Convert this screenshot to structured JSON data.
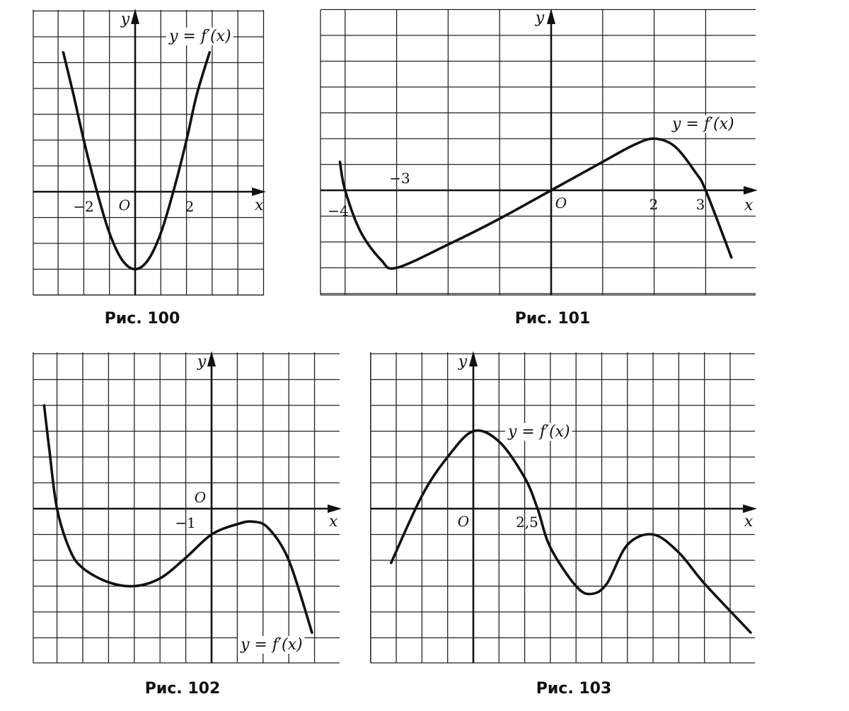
{
  "chart_data": [
    {
      "type": "line",
      "caption": "Рис. 100",
      "curve_label": "y = f′(x)",
      "xlabel": "x",
      "ylabel": "y",
      "origin_label": "O",
      "tick_labels": [
        "−2",
        "2"
      ],
      "grid": true,
      "series": [
        {
          "x": [
            -2.8,
            -2.4,
            -2.0,
            -1.5,
            -1.0,
            -0.5,
            0.0,
            0.5,
            1.0,
            1.5,
            2.0,
            2.4,
            2.9
          ],
          "y": [
            5.4,
            3.76,
            2.0,
            0.05,
            -1.6,
            -2.65,
            -3.0,
            -2.65,
            -1.6,
            0.05,
            2.0,
            3.76,
            5.4
          ]
        }
      ]
    },
    {
      "type": "line",
      "caption": "Рис. 101",
      "curve_label": "y = f′(x)",
      "xlabel": "x",
      "ylabel": "y",
      "origin_label": "O",
      "tick_labels": [
        "−4",
        "−3",
        "2",
        "3"
      ],
      "grid": true,
      "series": [
        {
          "x": [
            -4.1,
            -4.0,
            -3.7,
            -3.3,
            -3.0,
            -2.0,
            -1.0,
            0.0,
            1.0,
            1.6,
            2.0,
            2.4,
            2.8,
            3.0,
            3.5
          ],
          "y": [
            1.1,
            0.0,
            -1.6,
            -2.7,
            -3.0,
            -2.1,
            -1.1,
            0.0,
            1.1,
            1.75,
            2.0,
            1.7,
            0.7,
            0.0,
            -2.6
          ]
        }
      ]
    },
    {
      "type": "line",
      "caption": "Рис. 102",
      "curve_label": "y = f′(x)",
      "xlabel": "x",
      "ylabel": "y",
      "origin_label": "O",
      "tick_labels": [
        "−1"
      ],
      "grid": true,
      "series": [
        {
          "x": [
            -6.5,
            -6.3,
            -6.0,
            -5.5,
            -5.0,
            -4.0,
            -3.0,
            -2.0,
            -1.0,
            0.0,
            1.0,
            1.6,
            2.2,
            3.0,
            3.9
          ],
          "y": [
            4.0,
            2.3,
            0.0,
            -1.6,
            -2.3,
            -2.85,
            -3.0,
            -2.7,
            -1.9,
            -1.0,
            -0.6,
            -0.5,
            -0.75,
            -2.0,
            -4.8
          ]
        }
      ]
    },
    {
      "type": "line",
      "caption": "Рис. 103",
      "curve_label": "y = f′(x)",
      "xlabel": "x",
      "ylabel": "y",
      "origin_label": "O",
      "tick_labels": [
        "2,5"
      ],
      "grid": true,
      "series": [
        {
          "x": [
            -3.2,
            -2.0,
            -1.0,
            0.0,
            1.0,
            2.0,
            2.5,
            3.0,
            4.0,
            4.6,
            5.2,
            6.0,
            7.0,
            8.0,
            9.0,
            10.8
          ],
          "y": [
            -2.1,
            0.5,
            2.0,
            3.0,
            2.6,
            1.2,
            0.0,
            -1.5,
            -3.0,
            -3.3,
            -2.9,
            -1.4,
            -1.0,
            -1.7,
            -2.9,
            -4.8
          ]
        }
      ]
    }
  ]
}
